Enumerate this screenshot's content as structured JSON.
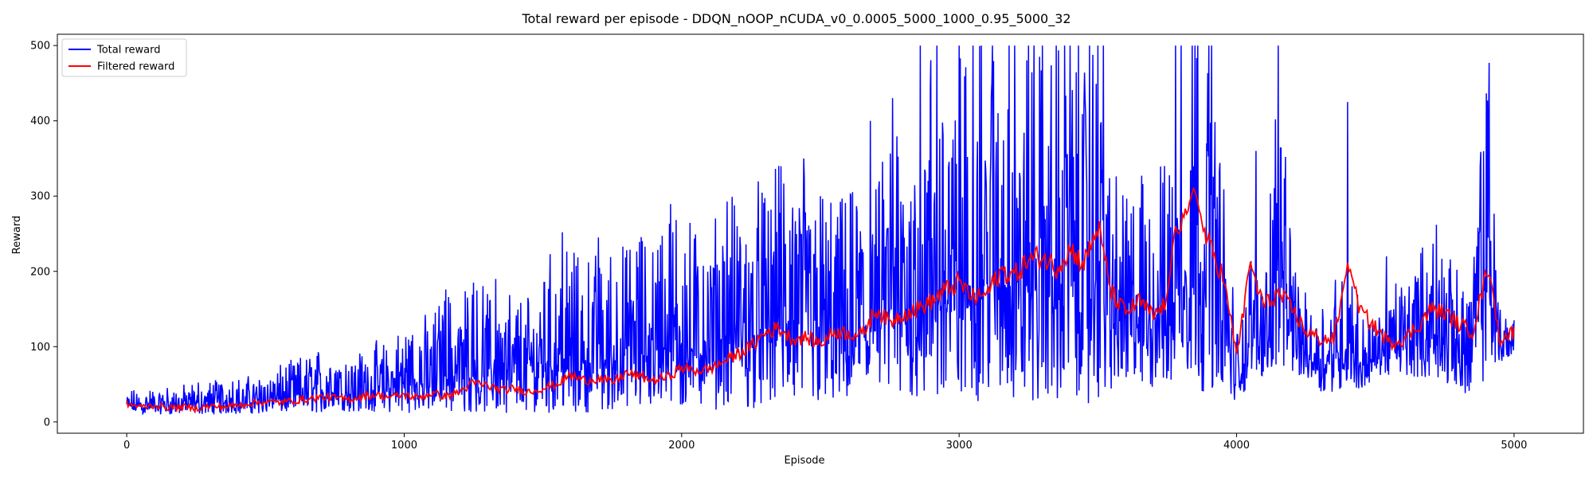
{
  "chart_data": {
    "type": "line",
    "title": "Total reward per episode - DDQN_nOOP_nCUDA_v0_0.0005_5000_1000_0.95_5000_32",
    "xlabel": "Episode",
    "ylabel": "Reward",
    "xlim": [
      -250,
      5250
    ],
    "ylim": [
      -15,
      515
    ],
    "xticks": [
      0,
      1000,
      2000,
      3000,
      4000,
      5000
    ],
    "yticks": [
      0,
      100,
      200,
      300,
      400,
      500
    ],
    "legend": "top-left",
    "grid": false,
    "series": [
      {
        "name": "Total reward",
        "color": "#0000ff",
        "x": [
          0,
          50,
          100,
          150,
          200,
          250,
          300,
          350,
          400,
          450,
          500,
          550,
          600,
          650,
          700,
          750,
          800,
          850,
          900,
          950,
          1000,
          1050,
          1100,
          1150,
          1200,
          1250,
          1300,
          1350,
          1400,
          1450,
          1500,
          1550,
          1600,
          1650,
          1700,
          1750,
          1800,
          1850,
          1900,
          1950,
          2000,
          2050,
          2100,
          2150,
          2200,
          2250,
          2300,
          2350,
          2400,
          2450,
          2500,
          2550,
          2600,
          2650,
          2700,
          2750,
          2800,
          2850,
          2900,
          2950,
          3000,
          3050,
          3100,
          3150,
          3200,
          3250,
          3300,
          3350,
          3400,
          3450,
          3500,
          3550,
          3600,
          3650,
          3700,
          3750,
          3800,
          3850,
          3900,
          3950,
          4000,
          4050,
          4100,
          4150,
          4200,
          4250,
          4300,
          4350,
          4400,
          4450,
          4500,
          4550,
          4600,
          4650,
          4700,
          4750,
          4800,
          4850,
          4900,
          4950,
          5000
        ],
        "low": [
          12,
          11,
          10,
          10,
          10,
          10,
          10,
          10,
          10,
          11,
          11,
          11,
          12,
          12,
          12,
          12,
          13,
          13,
          12,
          12,
          12,
          12,
          12,
          12,
          12,
          12,
          12,
          12,
          12,
          12,
          12,
          12,
          12,
          12,
          14,
          14,
          14,
          15,
          14,
          15,
          15,
          16,
          16,
          16,
          17,
          17,
          18,
          18,
          20,
          20,
          20,
          22,
          22,
          24,
          24,
          25,
          26,
          26,
          24,
          24,
          25,
          25,
          25,
          25,
          25,
          24,
          24,
          24,
          24,
          24,
          24,
          40,
          40,
          40,
          40,
          40,
          40,
          40,
          40,
          40,
          10,
          60,
          60,
          60,
          60,
          60,
          40,
          40,
          40,
          40,
          60,
          60,
          60,
          60,
          50,
          50,
          50,
          20,
          60,
          80,
          80
        ],
        "high": [
          42,
          45,
          48,
          50,
          50,
          55,
          58,
          62,
          60,
          62,
          70,
          75,
          85,
          90,
          100,
          100,
          90,
          100,
          110,
          110,
          130,
          140,
          150,
          180,
          175,
          185,
          180,
          170,
          180,
          170,
          250,
          220,
          230,
          220,
          240,
          230,
          240,
          260,
          250,
          300,
          270,
          290,
          290,
          300,
          310,
          320,
          330,
          340,
          360,
          340,
          310,
          300,
          300,
          350,
          320,
          390,
          420,
          430,
          500,
          500,
          500,
          500,
          500,
          500,
          500,
          500,
          500,
          500,
          500,
          500,
          500,
          330,
          320,
          330,
          340,
          350,
          500,
          500,
          500,
          330,
          140,
          220,
          210,
          500,
          230,
          170,
          150,
          200,
          230,
          150,
          140,
          170,
          200,
          220,
          260,
          240,
          200,
          230,
          480,
          160,
          160
        ],
        "spikes": [
          [
            1150,
            176
          ],
          [
            1250,
            185
          ],
          [
            1330,
            190
          ],
          [
            1570,
            252
          ],
          [
            1700,
            245
          ],
          [
            2050,
            249
          ],
          [
            2200,
            260
          ],
          [
            2350,
            340
          ],
          [
            2440,
            350
          ],
          [
            2500,
            300
          ],
          [
            2610,
            300
          ],
          [
            2680,
            400
          ],
          [
            2760,
            430
          ],
          [
            2860,
            500
          ],
          [
            2920,
            500
          ],
          [
            3000,
            500
          ],
          [
            3050,
            500
          ],
          [
            3080,
            500
          ],
          [
            3120,
            500
          ],
          [
            3180,
            500
          ],
          [
            3200,
            500
          ],
          [
            3250,
            500
          ],
          [
            3270,
            500
          ],
          [
            3300,
            500
          ],
          [
            3350,
            500
          ],
          [
            3380,
            500
          ],
          [
            3400,
            500
          ],
          [
            3430,
            500
          ],
          [
            3470,
            500
          ],
          [
            3500,
            500
          ],
          [
            3520,
            500
          ],
          [
            3780,
            500
          ],
          [
            3800,
            500
          ],
          [
            3840,
            500
          ],
          [
            3850,
            500
          ],
          [
            3860,
            500
          ],
          [
            3900,
            500
          ],
          [
            3910,
            500
          ],
          [
            4070,
            360
          ],
          [
            4150,
            500
          ],
          [
            4400,
            425
          ],
          [
            4540,
            220
          ],
          [
            4720,
            262
          ],
          [
            4910,
            477
          ]
        ]
      },
      {
        "name": "Filtered reward",
        "color": "#ff0000",
        "x": [
          0,
          50,
          100,
          150,
          200,
          250,
          300,
          350,
          400,
          450,
          500,
          550,
          600,
          650,
          700,
          750,
          800,
          850,
          900,
          950,
          1000,
          1050,
          1100,
          1150,
          1200,
          1250,
          1300,
          1350,
          1400,
          1450,
          1500,
          1550,
          1600,
          1650,
          1700,
          1750,
          1800,
          1850,
          1900,
          1950,
          2000,
          2050,
          2100,
          2150,
          2200,
          2250,
          2300,
          2350,
          2400,
          2450,
          2500,
          2550,
          2600,
          2650,
          2700,
          2750,
          2800,
          2850,
          2900,
          2950,
          3000,
          3050,
          3100,
          3150,
          3200,
          3250,
          3300,
          3350,
          3400,
          3450,
          3500,
          3550,
          3600,
          3650,
          3700,
          3750,
          3800,
          3850,
          3900,
          3950,
          4000,
          4050,
          4100,
          4150,
          4200,
          4250,
          4300,
          4350,
          4400,
          4450,
          4500,
          4550,
          4600,
          4650,
          4700,
          4750,
          4800,
          4850,
          4900,
          4950,
          5000
        ],
        "y": [
          24,
          20,
          22,
          19,
          20,
          18,
          21,
          20,
          22,
          25,
          27,
          26,
          28,
          30,
          33,
          32,
          30,
          34,
          36,
          33,
          36,
          32,
          38,
          34,
          40,
          52,
          48,
          42,
          44,
          40,
          45,
          50,
          62,
          55,
          58,
          52,
          65,
          60,
          55,
          60,
          72,
          68,
          70,
          80,
          90,
          100,
          118,
          125,
          110,
          112,
          104,
          120,
          118,
          115,
          150,
          132,
          145,
          150,
          160,
          175,
          185,
          165,
          170,
          200,
          195,
          215,
          220,
          205,
          230,
          210,
          260,
          170,
          145,
          160,
          140,
          160,
          255,
          290,
          235,
          195,
          90,
          200,
          155,
          170,
          150,
          120,
          110,
          110,
          200,
          145,
          125,
          105,
          110,
          125,
          150,
          145,
          130,
          120,
          195,
          110,
          120
        ],
        "spikes": [
          [
            3780,
            260
          ],
          [
            3845,
            310
          ],
          [
            4405,
            200
          ],
          [
            4050,
            205
          ],
          [
            4910,
            195
          ]
        ]
      }
    ]
  }
}
